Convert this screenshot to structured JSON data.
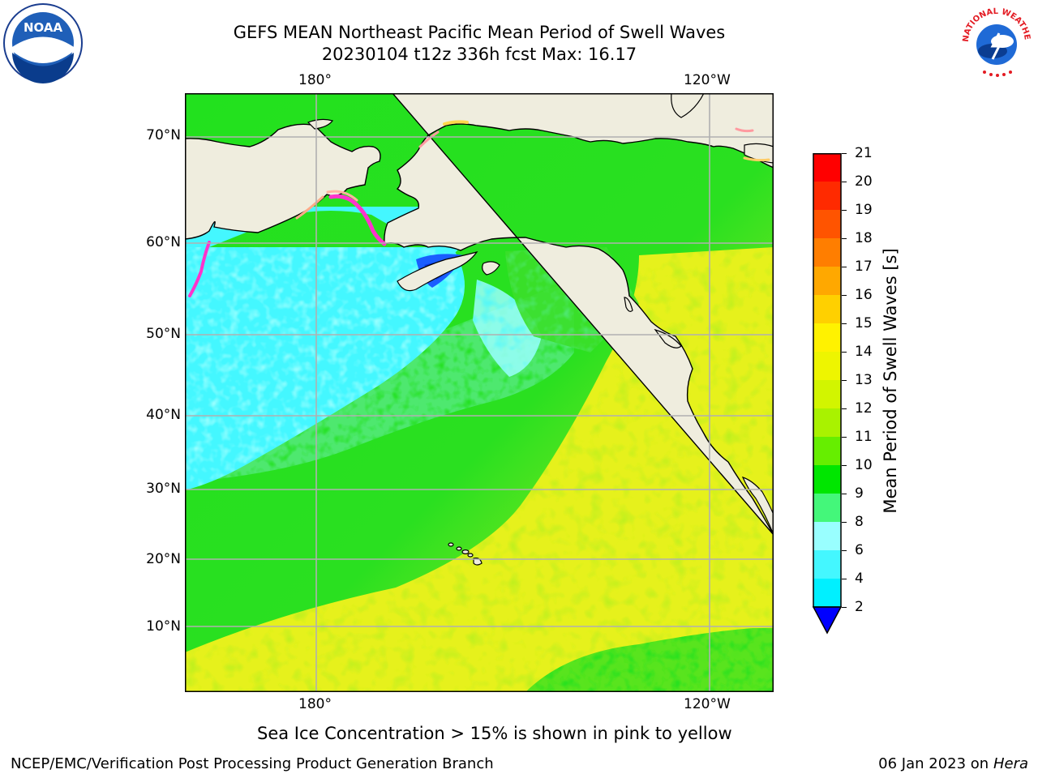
{
  "title": {
    "line1": "GEFS MEAN Northeast Pacific Mean Period of Swell Waves",
    "line2": "20230104 t12z 336h fcst   Max: 16.17"
  },
  "map": {
    "lon_labels_top": [
      "180°",
      "120°W"
    ],
    "lon_labels_bottom": [
      "180°",
      "120°W"
    ],
    "lat_labels": [
      "70°N",
      "60°N",
      "50°N",
      "40°N",
      "30°N",
      "20°N",
      "10°N"
    ],
    "colors": {
      "land": "#efedde",
      "grid": "#b0b0b0",
      "cyan": "#44f7ff",
      "light_cyan": "#99ffff",
      "blue": "#1a5dff",
      "green": "#22e11e",
      "mid_green": "#4ee86f",
      "yellow": "#e9f11c",
      "pink": "#ff33cc"
    }
  },
  "colorbar": {
    "label": "Mean Period of Swell Waves [s]",
    "ticks": [
      "21",
      "20",
      "19",
      "18",
      "17",
      "16",
      "15",
      "14",
      "13",
      "12",
      "11",
      "10",
      "9",
      "8",
      "6",
      "4",
      "2"
    ],
    "colors": [
      "#ff0000",
      "#ff2a00",
      "#ff5400",
      "#ff7e00",
      "#ffa800",
      "#ffd000",
      "#fff200",
      "#eef500",
      "#d2f500",
      "#a9f200",
      "#66ee00",
      "#00e600",
      "#44f77a",
      "#99ffff",
      "#44f7ff",
      "#00f0ff",
      "#0088ff",
      "#0044ff"
    ],
    "extend_color": "#0000ff"
  },
  "note": "Sea Ice Concentration > 15% is shown in pink to yellow",
  "footer": {
    "left": "NCEP/EMC/Verification Post Processing Product Generation Branch",
    "right_date": "06 Jan 2023 on ",
    "right_host": "Hera"
  },
  "logos": {
    "noaa_text": "NOAA",
    "nws_text": "NATIONAL WEATHER SERVICE"
  }
}
